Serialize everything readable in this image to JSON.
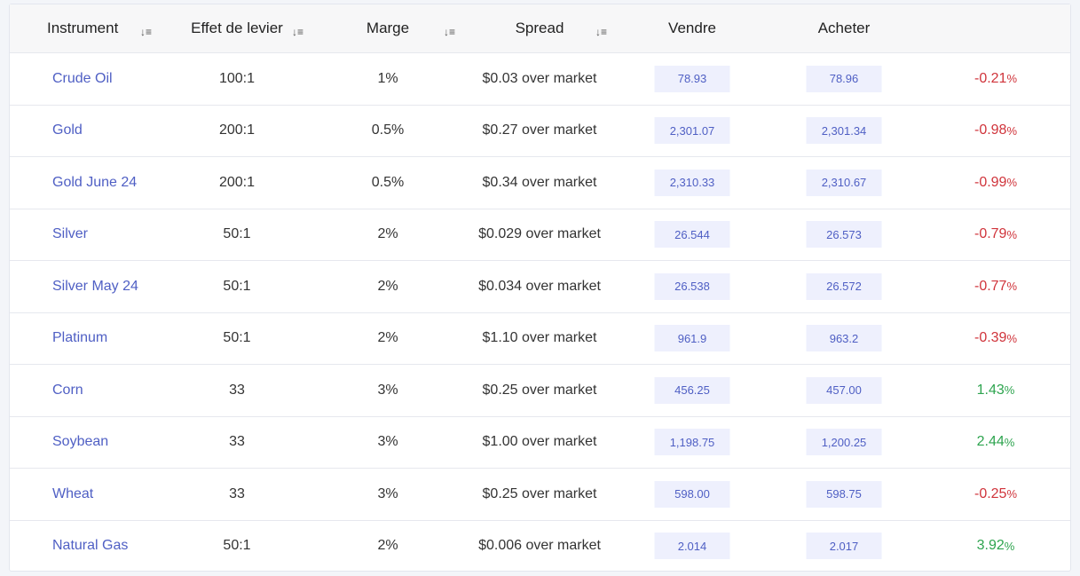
{
  "headers": {
    "instrument": "Instrument",
    "leverage": "Effet de levier",
    "margin": "Marge",
    "spread": "Spread",
    "sell": "Vendre",
    "buy": "Acheter"
  },
  "colors": {
    "link": "#4f5fc4",
    "negative": "#d0343b",
    "positive": "#2ea44f",
    "price_box": "#eef0fd"
  },
  "rows": [
    {
      "instrument": "Crude Oil",
      "leverage": "100:1",
      "margin": "1%",
      "spread": "$0.03 over market",
      "sell": "78.93",
      "buy": "78.96",
      "change": "-0.21",
      "direction": "negative"
    },
    {
      "instrument": "Gold",
      "leverage": "200:1",
      "margin": "0.5%",
      "spread": "$0.27 over market",
      "sell": "2,301.07",
      "buy": "2,301.34",
      "change": "-0.98",
      "direction": "negative"
    },
    {
      "instrument": "Gold June 24",
      "leverage": "200:1",
      "margin": "0.5%",
      "spread": "$0.34 over market",
      "sell": "2,310.33",
      "buy": "2,310.67",
      "change": "-0.99",
      "direction": "negative"
    },
    {
      "instrument": "Silver",
      "leverage": "50:1",
      "margin": "2%",
      "spread": "$0.029 over market",
      "sell": "26.544",
      "buy": "26.573",
      "change": "-0.79",
      "direction": "negative"
    },
    {
      "instrument": "Silver May 24",
      "leverage": "50:1",
      "margin": "2%",
      "spread": "$0.034 over market",
      "sell": "26.538",
      "buy": "26.572",
      "change": "-0.77",
      "direction": "negative"
    },
    {
      "instrument": "Platinum",
      "leverage": "50:1",
      "margin": "2%",
      "spread": "$1.10 over market",
      "sell": "961.9",
      "buy": "963.2",
      "change": "-0.39",
      "direction": "negative"
    },
    {
      "instrument": "Corn",
      "leverage": "33",
      "margin": "3%",
      "spread": "$0.25 over market",
      "sell": "456.25",
      "buy": "457.00",
      "change": "1.43",
      "direction": "positive"
    },
    {
      "instrument": "Soybean",
      "leverage": "33",
      "margin": "3%",
      "spread": "$1.00 over market",
      "sell": "1,198.75",
      "buy": "1,200.25",
      "change": "2.44",
      "direction": "positive"
    },
    {
      "instrument": "Wheat",
      "leverage": "33",
      "margin": "3%",
      "spread": "$0.25 over market",
      "sell": "598.00",
      "buy": "598.75",
      "change": "-0.25",
      "direction": "negative"
    },
    {
      "instrument": "Natural Gas",
      "leverage": "50:1",
      "margin": "2%",
      "spread": "$0.006 over market",
      "sell": "2.014",
      "buy": "2.017",
      "change": "3.92",
      "direction": "positive"
    }
  ],
  "percent_sign": "%"
}
